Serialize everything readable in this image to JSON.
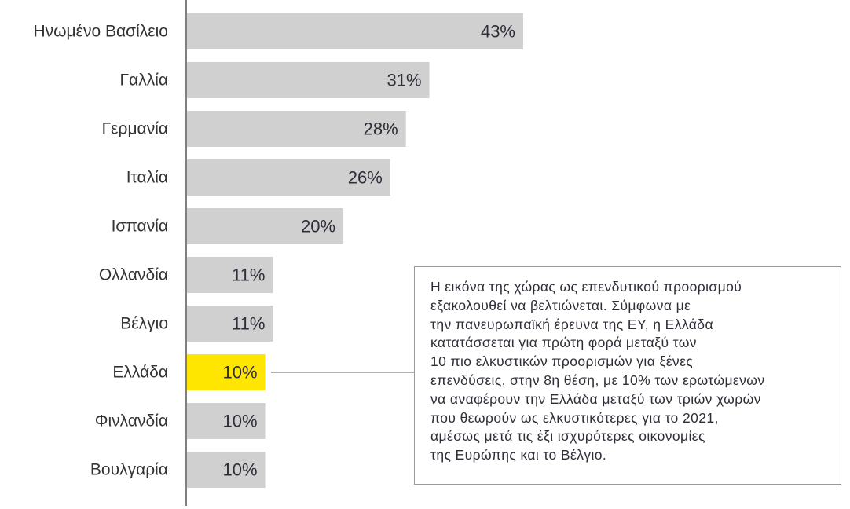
{
  "chart_data": {
    "type": "bar",
    "orientation": "horizontal",
    "categories": [
      "Ηνωμένο Βασίλειο",
      "Γαλλία",
      "Γερμανία",
      "Ιταλία",
      "Ισπανία",
      "Ολλανδία",
      "Βέλγιο",
      "Ελλάδα",
      "Φινλανδία",
      "Βουλγαρία"
    ],
    "values": [
      43,
      31,
      28,
      26,
      20,
      11,
      11,
      10,
      10,
      10
    ],
    "value_labels": [
      "43%",
      "31%",
      "28%",
      "26%",
      "20%",
      "11%",
      "11%",
      "10%",
      "10%",
      "10%"
    ],
    "highlight_category": "Ελλάδα",
    "colors": {
      "bar": "#d0d0d0",
      "highlight": "#ffe600",
      "axis": "#555555",
      "text": "#2e2e38"
    },
    "grid": false,
    "legend": "none"
  },
  "callout": {
    "lines": [
      "Η εικόνα της χώρας ως επενδυτικού προορισμού",
      "εξακολουθεί να βελτιώνεται. Σύμφωνα με",
      "την πανευρωπαϊκή έρευνα της EY, η Ελλάδα",
      "κατατάσσεται για πρώτη φορά μεταξύ των",
      "10 πιο ελκυστικών προορισμών για ξένες",
      "επενδύσεις, στην 8η θέση, με 10% των ερωτώμενων",
      "να αναφέρουν την Ελλάδα μεταξύ των τριών χωρών",
      "που θεωρούν ως ελκυστικότερες για το 2021,",
      "αμέσως μετά τις έξι ισχυρότερες οικονομίες",
      "της Ευρώπης και το Βέλγιο."
    ]
  }
}
